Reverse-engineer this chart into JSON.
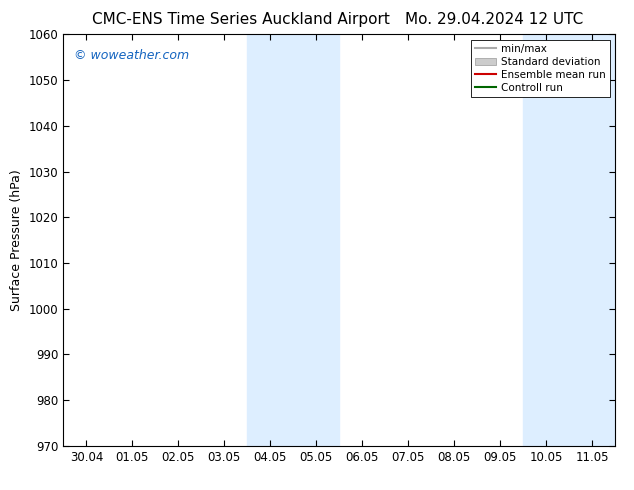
{
  "title_left": "CMC-ENS Time Series Auckland Airport",
  "title_right": "Mo. 29.04.2024 12 UTC",
  "ylabel": "Surface Pressure (hPa)",
  "ylim": [
    970,
    1060
  ],
  "yticks": [
    970,
    980,
    990,
    1000,
    1010,
    1020,
    1030,
    1040,
    1050,
    1060
  ],
  "xlim_start": -0.5,
  "xlim_end": 11.5,
  "xtick_labels": [
    "30.04",
    "01.05",
    "02.05",
    "03.05",
    "04.05",
    "05.05",
    "06.05",
    "07.05",
    "08.05",
    "09.05",
    "10.05",
    "11.05"
  ],
  "xtick_positions": [
    0,
    1,
    2,
    3,
    4,
    5,
    6,
    7,
    8,
    9,
    10,
    11
  ],
  "shaded_regions": [
    {
      "xmin": 3.5,
      "xmax": 4.5,
      "color": "#ddeeff"
    },
    {
      "xmin": 4.5,
      "xmax": 5.5,
      "color": "#ddeeff"
    },
    {
      "xmin": 9.5,
      "xmax": 10.5,
      "color": "#ddeeff"
    },
    {
      "xmin": 10.5,
      "xmax": 11.5,
      "color": "#ddeeff"
    }
  ],
  "watermark_text": "© woweather.com",
  "watermark_color": "#1565c0",
  "legend_items": [
    {
      "label": "min/max",
      "color": "#aaaaaa",
      "type": "line",
      "linewidth": 1.5
    },
    {
      "label": "Standard deviation",
      "color": "#cccccc",
      "type": "patch"
    },
    {
      "label": "Ensemble mean run",
      "color": "#cc0000",
      "type": "line",
      "linewidth": 1.5
    },
    {
      "label": "Controll run",
      "color": "#006600",
      "type": "line",
      "linewidth": 1.5
    }
  ],
  "background_color": "#ffffff",
  "title_fontsize": 11,
  "tick_fontsize": 8.5,
  "ylabel_fontsize": 9
}
